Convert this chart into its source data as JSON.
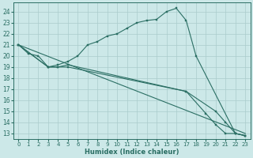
{
  "xlabel": "Humidex (Indice chaleur)",
  "xlim": [
    -0.5,
    23.5
  ],
  "ylim": [
    12.5,
    24.8
  ],
  "xticks": [
    0,
    1,
    2,
    3,
    4,
    5,
    6,
    7,
    8,
    9,
    10,
    11,
    12,
    13,
    14,
    15,
    16,
    17,
    18,
    19,
    20,
    21,
    22,
    23
  ],
  "yticks": [
    13,
    14,
    15,
    16,
    17,
    18,
    19,
    20,
    21,
    22,
    23,
    24
  ],
  "bg_color": "#cce8e8",
  "line_color": "#2a6e63",
  "grid_color": "#aacccc",
  "curve1_x": [
    0,
    1,
    2,
    3,
    4,
    5,
    6,
    7,
    8,
    9,
    10,
    11,
    12,
    13,
    14,
    15,
    16,
    17,
    18,
    22,
    23
  ],
  "curve1_y": [
    21.0,
    20.2,
    20.0,
    19.0,
    19.2,
    19.5,
    20.0,
    21.0,
    21.3,
    21.8,
    22.0,
    22.5,
    23.0,
    23.2,
    23.3,
    24.0,
    24.3,
    23.2,
    20.0,
    13.0,
    12.8
  ],
  "curve2_x": [
    0,
    3,
    4,
    5,
    17,
    20,
    21,
    22,
    23
  ],
  "curve2_y": [
    21.0,
    19.0,
    19.0,
    19.2,
    16.8,
    15.0,
    14.0,
    13.0,
    12.8
  ],
  "curve3_x": [
    0,
    3,
    4,
    5,
    17,
    19,
    20,
    21,
    22,
    23
  ],
  "curve3_y": [
    21.0,
    19.0,
    19.0,
    19.0,
    16.8,
    14.8,
    13.8,
    13.0,
    13.0,
    12.8
  ],
  "line4_x": [
    0,
    23
  ],
  "line4_y": [
    21.0,
    13.0
  ]
}
